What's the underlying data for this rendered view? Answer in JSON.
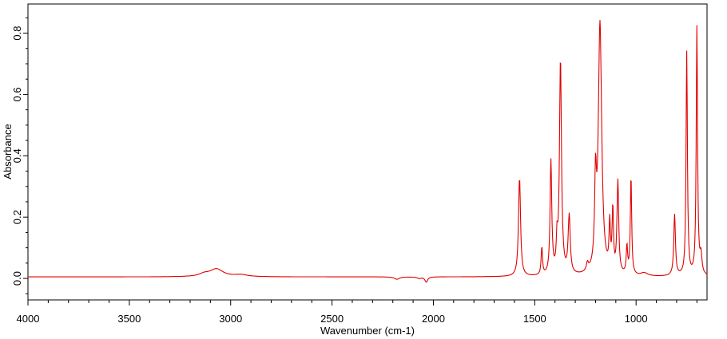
{
  "chart_data": {
    "type": "line",
    "title": "",
    "xlabel": "Wavenumber (cm-1)",
    "ylabel": "Absorbance",
    "xlim": [
      4000,
      650
    ],
    "ylim": [
      -0.07,
      0.895
    ],
    "x_reversed": true,
    "grid": false,
    "legend": "none",
    "x_ticks": [
      4000,
      3500,
      3000,
      2500,
      2000,
      1500,
      1000
    ],
    "x_tick_labels": [
      "4000",
      "3500",
      "3000",
      "2500",
      "2000",
      "1500",
      "1000"
    ],
    "y_ticks": [
      0.0,
      0.2,
      0.4,
      0.6,
      0.8
    ],
    "y_tick_labels": [
      "0.0",
      "0.2",
      "0.4",
      "0.6",
      "0.8"
    ],
    "baseline": 0.005,
    "line_color": "#e00000",
    "series": [
      {
        "peaks": [
          [
            3070,
            0.025,
            40
          ],
          [
            3130,
            0.008,
            30
          ],
          [
            2950,
            0.006,
            40
          ],
          [
            2180,
            -0.008,
            15
          ],
          [
            2070,
            -0.005,
            12
          ],
          [
            2035,
            -0.017,
            8
          ],
          [
            1575,
            0.32,
            6
          ],
          [
            1465,
            0.09,
            4
          ],
          [
            1420,
            0.37,
            5
          ],
          [
            1390,
            0.09,
            4
          ],
          [
            1373,
            0.7,
            6
          ],
          [
            1330,
            0.19,
            6
          ],
          [
            1240,
            0.025,
            6
          ],
          [
            1200,
            0.26,
            5
          ],
          [
            1178,
            0.82,
            10
          ],
          [
            1130,
            0.15,
            4
          ],
          [
            1115,
            0.2,
            4
          ],
          [
            1090,
            0.3,
            5
          ],
          [
            1045,
            0.09,
            4
          ],
          [
            1025,
            0.32,
            4
          ],
          [
            960,
            0.01,
            20
          ],
          [
            810,
            0.2,
            5
          ],
          [
            750,
            0.73,
            4
          ],
          [
            700,
            0.81,
            4
          ],
          [
            680,
            0.06,
            6
          ]
        ]
      }
    ]
  }
}
